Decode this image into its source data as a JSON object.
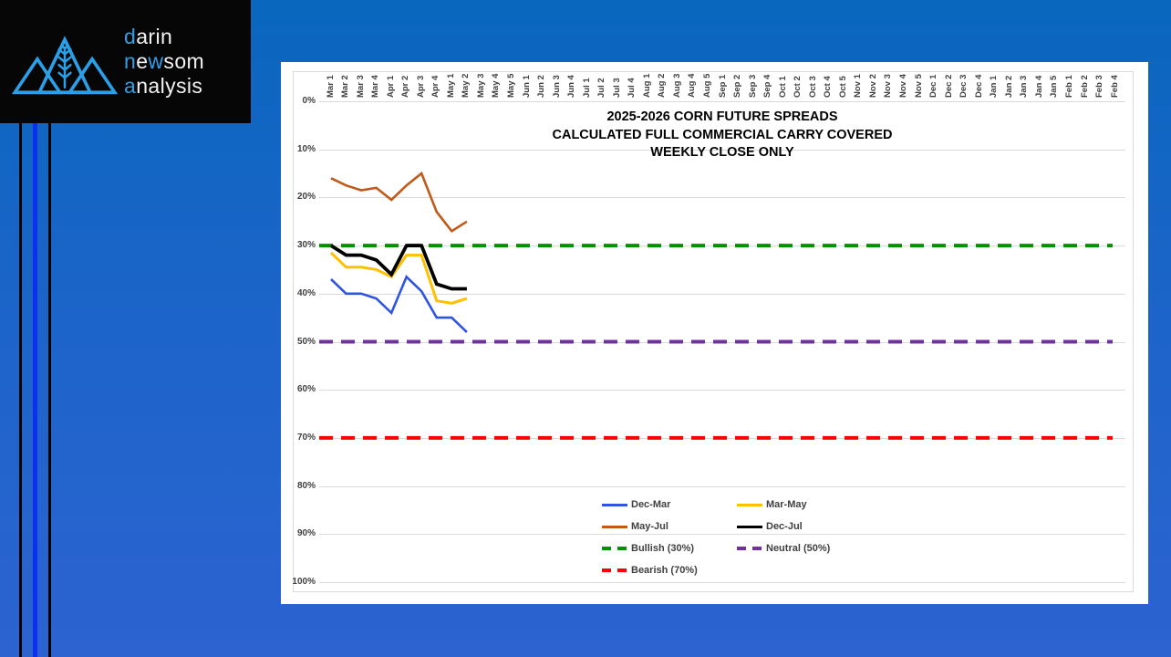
{
  "logo": {
    "accent_color": "#2E9FE8",
    "text_color": "#F2F2F2",
    "icon": "mountains-wheat-icon",
    "lines": [
      {
        "segments": [
          {
            "text": "d",
            "accent": true
          },
          {
            "text": "arin",
            "accent": false
          }
        ]
      },
      {
        "segments": [
          {
            "text": "n",
            "accent": true
          },
          {
            "text": "e",
            "accent": false
          },
          {
            "text": "w",
            "accent": true
          },
          {
            "text": "som",
            "accent": false
          }
        ]
      },
      {
        "segments": [
          {
            "text": "a",
            "accent": true
          },
          {
            "text": "nalysis",
            "accent": false
          }
        ]
      }
    ]
  },
  "chart_data": {
    "type": "line",
    "title_lines": [
      "2025-2026 CORN FUTURE SPREADS",
      "CALCULATED FULL COMMERCIAL CARRY COVERED",
      "WEEKLY CLOSE ONLY"
    ],
    "y_axis": {
      "min": 0,
      "max": 100,
      "unit": "%",
      "inverted": true,
      "grid": true
    },
    "y_ticks": [
      "0%",
      "10%",
      "20%",
      "30%",
      "40%",
      "50%",
      "60%",
      "70%",
      "80%",
      "90%",
      "100%"
    ],
    "x_categories": [
      "Mar 1",
      "Mar 2",
      "Mar 3",
      "Mar 4",
      "Apr 1",
      "Apr 2",
      "Apr 3",
      "Apr 4",
      "May 1",
      "May 2",
      "May 3",
      "May 4",
      "May 5",
      "Jun 1",
      "Jun 2",
      "Jun 3",
      "Jun 4",
      "Jul 1",
      "Jul 2",
      "Jul 3",
      "Jul 4",
      "Aug 1",
      "Aug 2",
      "Aug 3",
      "Aug 4",
      "Aug 5",
      "Sep 1",
      "Sep 2",
      "Sep 3",
      "Sep 4",
      "Oct 1",
      "Oct 2",
      "Oct 3",
      "Oct 4",
      "Oct 5",
      "Nov 1",
      "Nov 2",
      "Nov 3",
      "Nov 4",
      "Nov 5",
      "Dec 1",
      "Dec 2",
      "Dec 3",
      "Dec 4",
      "Jan 1",
      "Jan 2",
      "Jan 3",
      "Jan 4",
      "Jan 5",
      "Feb 1",
      "Feb 2",
      "Feb 3",
      "Feb 4"
    ],
    "series": [
      {
        "name": "Dec-Mar",
        "color": "#2E55E2",
        "width": 2.6,
        "values": [
          37,
          40,
          40,
          41,
          44,
          36.5,
          39.5,
          45,
          45,
          48
        ]
      },
      {
        "name": "Mar-May",
        "color": "#FFC000",
        "width": 3.0,
        "values": [
          31.5,
          34.5,
          34.5,
          35,
          36.5,
          32,
          32,
          41.5,
          42,
          41
        ]
      },
      {
        "name": "May-Jul",
        "color": "#C05A18",
        "width": 2.6,
        "values": [
          16,
          17.5,
          18.5,
          18,
          20.5,
          17.5,
          15,
          23,
          27,
          25
        ]
      },
      {
        "name": "Dec-Jul",
        "color": "#000000",
        "width": 3.8,
        "values": [
          30,
          32,
          32,
          33,
          36,
          30,
          30,
          38,
          39,
          39
        ]
      }
    ],
    "reference_lines": [
      {
        "name": "Bullish (30%)",
        "value": 30,
        "color": "#089000"
      },
      {
        "name": "Neutral (50%)",
        "value": 50,
        "color": "#7030A0"
      },
      {
        "name": "Bearish (70%)",
        "value": 70,
        "color": "#FF0000"
      }
    ],
    "legend": {
      "position": "bottom-center",
      "rows": [
        [
          "Dec-Mar",
          "Mar-May"
        ],
        [
          "May-Jul",
          "Dec-Jul"
        ],
        [
          "Bullish (30%)",
          "Neutral (50%)"
        ],
        [
          "Bearish (70%)"
        ]
      ]
    }
  }
}
